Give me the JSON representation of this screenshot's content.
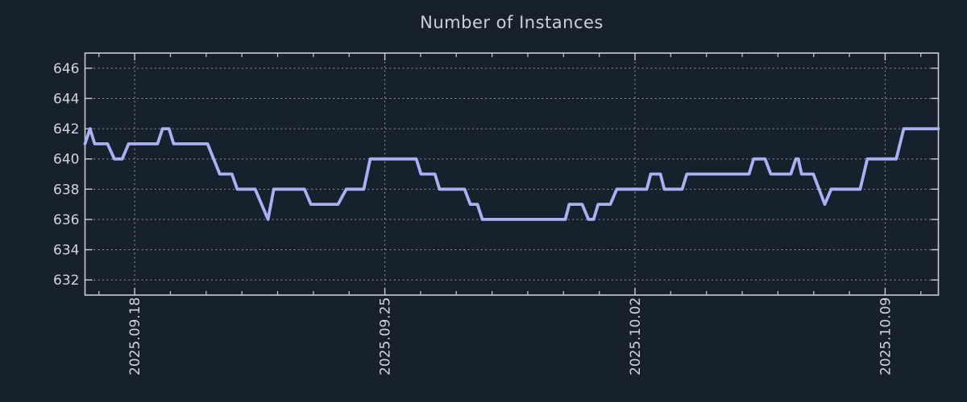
{
  "colors": {
    "background": "#17202d",
    "line": "#aab1f2",
    "grid": "#99a1a9",
    "axis": "#c9ced5",
    "text": "#d3d5d9",
    "title_text": "#cdd0d6"
  },
  "chart_data": {
    "type": "line",
    "title": "Number of Instances",
    "legend": "none",
    "grid": true,
    "x_axis": {
      "unit": "days_since_2025.09.18",
      "range": [
        -1.39,
        22.49
      ],
      "major_ticks": [
        {
          "day": 0,
          "label": "2025.09.18"
        },
        {
          "day": 7,
          "label": "2025.09.25"
        },
        {
          "day": 14,
          "label": "2025.10.02"
        },
        {
          "day": 21,
          "label": "2025.10.09"
        }
      ],
      "minor_tick_every_days": 1,
      "label_rotation_deg": -90
    },
    "y_axis": {
      "range": [
        631,
        647
      ],
      "major_ticks": [
        632,
        634,
        636,
        638,
        640,
        642,
        644,
        646
      ]
    },
    "series": [
      {
        "name": "instances",
        "color": "#aab1f2",
        "points_day_value": [
          [
            -1.39,
            641
          ],
          [
            -1.25,
            642
          ],
          [
            -1.12,
            641
          ],
          [
            -0.76,
            641
          ],
          [
            -0.57,
            640
          ],
          [
            -0.35,
            640
          ],
          [
            -0.17,
            641
          ],
          [
            0.64,
            641
          ],
          [
            0.78,
            642
          ],
          [
            0.96,
            642
          ],
          [
            1.09,
            641
          ],
          [
            2.04,
            641
          ],
          [
            2.38,
            639
          ],
          [
            2.72,
            639
          ],
          [
            2.87,
            638
          ],
          [
            3.37,
            638
          ],
          [
            3.73,
            636
          ],
          [
            3.89,
            638
          ],
          [
            4.75,
            638
          ],
          [
            4.93,
            637
          ],
          [
            5.69,
            637
          ],
          [
            5.92,
            638
          ],
          [
            6.41,
            638
          ],
          [
            6.59,
            640
          ],
          [
            7.88,
            640
          ],
          [
            8.01,
            639
          ],
          [
            8.4,
            639
          ],
          [
            8.53,
            638
          ],
          [
            9.23,
            638
          ],
          [
            9.39,
            637
          ],
          [
            9.59,
            637
          ],
          [
            9.73,
            636
          ],
          [
            12.05,
            636
          ],
          [
            12.16,
            637
          ],
          [
            12.52,
            637
          ],
          [
            12.7,
            636
          ],
          [
            12.84,
            636
          ],
          [
            12.97,
            637
          ],
          [
            13.31,
            637
          ],
          [
            13.49,
            638
          ],
          [
            14.33,
            638
          ],
          [
            14.44,
            639
          ],
          [
            14.71,
            639
          ],
          [
            14.82,
            638
          ],
          [
            15.32,
            638
          ],
          [
            15.45,
            639
          ],
          [
            17.19,
            639
          ],
          [
            17.32,
            640
          ],
          [
            17.64,
            640
          ],
          [
            17.8,
            639
          ],
          [
            18.36,
            639
          ],
          [
            18.5,
            640
          ],
          [
            18.57,
            640
          ],
          [
            18.66,
            639
          ],
          [
            18.99,
            639
          ],
          [
            19.31,
            637
          ],
          [
            19.49,
            638
          ],
          [
            20.3,
            638
          ],
          [
            20.5,
            640
          ],
          [
            21.31,
            640
          ],
          [
            21.52,
            642
          ],
          [
            22.49,
            642
          ]
        ]
      }
    ]
  }
}
